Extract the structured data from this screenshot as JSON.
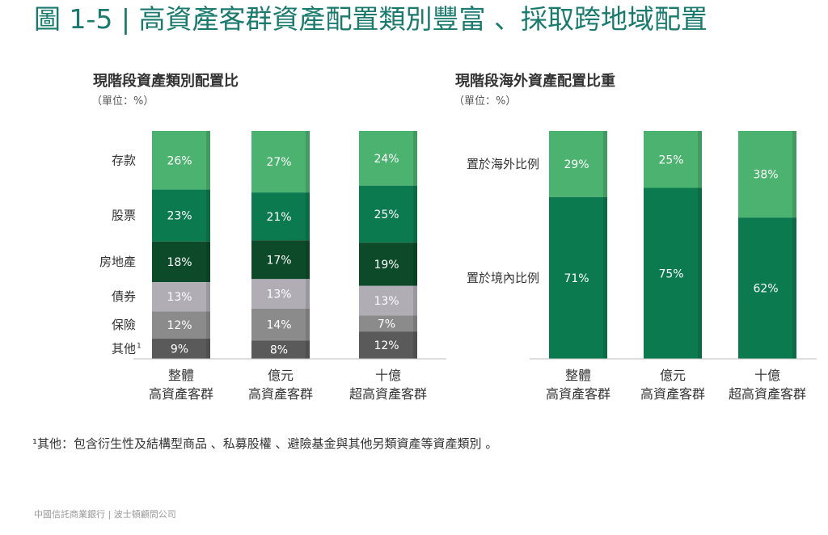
{
  "page": {
    "title": "圖 1-5 | 高資產客群資產配置類別豐富 、採取跨地域配置",
    "footnote": "¹其他：包含衍生性及結構型商品 、私募股權 、避險基金與其他另類資產等資產類別 。",
    "source": "中國信託商業銀行 | 波士頓顧問公司"
  },
  "colors": {
    "title": "#1b7a6e",
    "deposit": "#4cb26f",
    "stock": "#0c7a4f",
    "realestate": "#0d4a2a",
    "bond": "#b0adb5",
    "insurance": "#8b8b8b",
    "other": "#5a5a5a",
    "overseas": "#4cb26f",
    "domestic": "#0c7a4f"
  },
  "chart_data": [
    {
      "type": "bar",
      "stacked": true,
      "title": "現階段資產類別配置比",
      "unit_label": "（單位：%）",
      "categories": [
        [
          "整體",
          "高資產客群"
        ],
        [
          "億元",
          "高資產客群"
        ],
        [
          "十億",
          "超高資產客群"
        ]
      ],
      "series": [
        {
          "name": "存款",
          "values": [
            26,
            27,
            24
          ],
          "color_key": "deposit"
        },
        {
          "name": "股票",
          "values": [
            23,
            21,
            25
          ],
          "color_key": "stock"
        },
        {
          "name": "房地產",
          "values": [
            18,
            17,
            19
          ],
          "color_key": "realestate"
        },
        {
          "name": "債券",
          "values": [
            13,
            13,
            13
          ],
          "color_key": "bond"
        },
        {
          "name": "保險",
          "values": [
            12,
            14,
            7
          ],
          "color_key": "insurance"
        },
        {
          "name": "其他",
          "values": [
            9,
            8,
            12
          ],
          "color_key": "other",
          "footnote_mark": "1"
        }
      ],
      "data_labels": true,
      "label_suffix": "%"
    },
    {
      "type": "bar",
      "stacked": true,
      "title": "現階段海外資產配置比重",
      "unit_label": "（單位：%）",
      "categories": [
        [
          "整體",
          "高資產客群"
        ],
        [
          "億元",
          "高資產客群"
        ],
        [
          "十億",
          "超高資產客群"
        ]
      ],
      "series": [
        {
          "name": "置於海外比例",
          "values": [
            29,
            25,
            38
          ],
          "color_key": "overseas"
        },
        {
          "name": "置於境內比例",
          "values": [
            71,
            75,
            62
          ],
          "color_key": "domestic"
        }
      ],
      "data_labels": true,
      "label_suffix": "%"
    }
  ]
}
